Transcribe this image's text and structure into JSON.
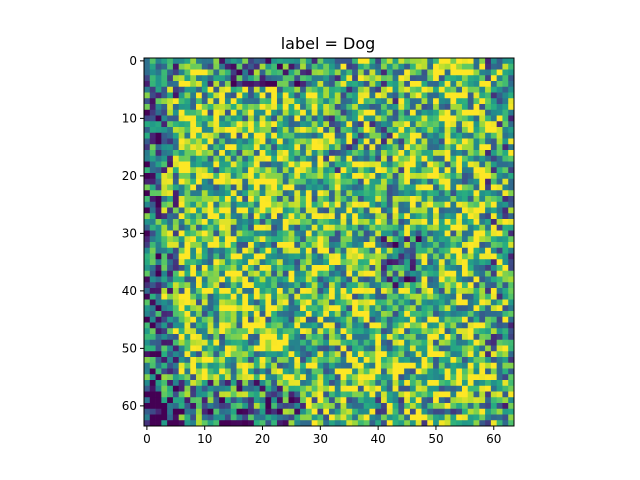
{
  "chart_data": {
    "type": "heatmap",
    "title": "label = Dog",
    "xlabel": "",
    "ylabel": "",
    "rows": 64,
    "cols": 64,
    "xlim": [
      -0.5,
      63.5
    ],
    "ylim": [
      63.5,
      -0.5
    ],
    "x_ticks": [
      0,
      10,
      20,
      30,
      40,
      50,
      60
    ],
    "y_ticks": [
      0,
      10,
      20,
      30,
      40,
      50,
      60
    ],
    "colormap": "viridis",
    "value_range": [
      0,
      1
    ],
    "grid": false,
    "axis_color": "#000000",
    "background": "#ffffff"
  }
}
